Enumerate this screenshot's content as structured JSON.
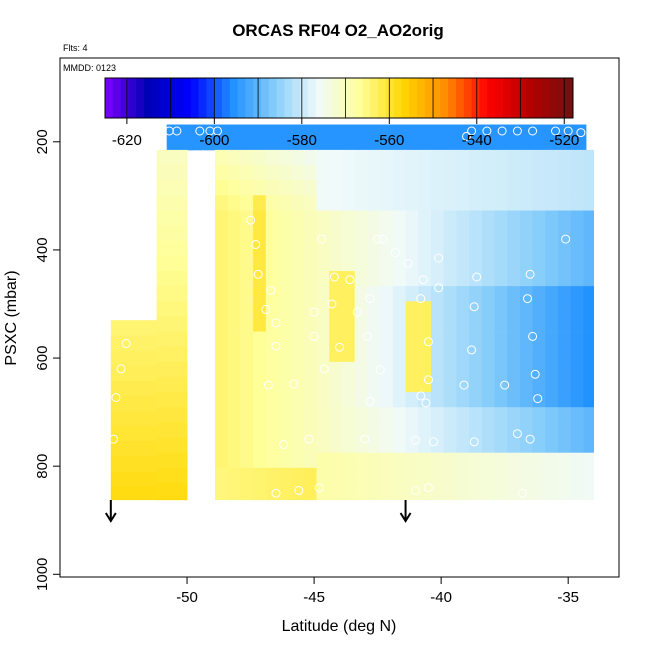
{
  "chart_data": {
    "type": "heatmap",
    "title": "ORCAS RF04 O2_AO2orig",
    "flights_note": "Flts: 4",
    "date_note": "MMDD: 0123",
    "xlabel": "Latitude (deg N)",
    "ylabel": "PSXC (mbar)",
    "xlim": [
      -55.0,
      -33.0
    ],
    "ylim": [
      1005,
      45
    ],
    "x_ticks": [
      -50,
      -45,
      -40,
      -35
    ],
    "x_tick_labels": [
      "-50",
      "-45",
      "-40",
      "-35"
    ],
    "y_ticks": [
      200,
      400,
      600,
      800,
      1000
    ],
    "y_tick_labels": [
      "200",
      "400",
      "600",
      "800",
      "1000"
    ],
    "colorbar": {
      "range": [
        -625,
        -518
      ],
      "ticks": [
        -620,
        -600,
        -580,
        -560,
        -540,
        -520
      ],
      "tick_labels": [
        "-620",
        "-600",
        "-580",
        "-560",
        "-540",
        "-520"
      ],
      "colors": [
        "#7f00ff",
        "#0000b4",
        "#0000ff",
        "#1e90ff",
        "#87cefa",
        "#f0fafa",
        "#ffff99",
        "#ffd700",
        "#ff8c00",
        "#ff0000",
        "#b40000",
        "#701010"
      ]
    },
    "arrows": [
      {
        "lat": -53.0,
        "label": "down-arrow"
      },
      {
        "lat": -41.4,
        "label": "down-arrow"
      }
    ],
    "columns": [
      {
        "x0": -53.0,
        "x1": -50.0,
        "p_top": 530,
        "p_bot": 862
      },
      {
        "x0": -50.8,
        "x1": -34.3,
        "p_top": 168,
        "p_bot": 215
      },
      {
        "x0": -51.2,
        "x1": -50.0,
        "p_top": 215,
        "p_bot": 862
      },
      {
        "x0": -48.9,
        "x1": -34.0,
        "p_top": 215,
        "p_bot": 862
      }
    ],
    "samples": [
      {
        "lat": -50.7,
        "p": 180
      },
      {
        "lat": -50.4,
        "p": 180
      },
      {
        "lat": -49.5,
        "p": 180
      },
      {
        "lat": -49.1,
        "p": 180
      },
      {
        "lat": -48.8,
        "p": 180
      },
      {
        "lat": -39.0,
        "p": 190
      },
      {
        "lat": -38.8,
        "p": 180
      },
      {
        "lat": -38.2,
        "p": 180
      },
      {
        "lat": -37.6,
        "p": 180
      },
      {
        "lat": -37.0,
        "p": 180
      },
      {
        "lat": -36.4,
        "p": 180
      },
      {
        "lat": -35.5,
        "p": 180
      },
      {
        "lat": -35.0,
        "p": 180
      },
      {
        "lat": -34.5,
        "p": 183
      },
      {
        "lat": -47.5,
        "p": 345
      },
      {
        "lat": -47.3,
        "p": 390
      },
      {
        "lat": -44.7,
        "p": 380
      },
      {
        "lat": -42.5,
        "p": 380
      },
      {
        "lat": -42.3,
        "p": 380
      },
      {
        "lat": -41.8,
        "p": 405
      },
      {
        "lat": -40.1,
        "p": 415
      },
      {
        "lat": -35.1,
        "p": 380
      },
      {
        "lat": -47.2,
        "p": 445
      },
      {
        "lat": -46.7,
        "p": 475
      },
      {
        "lat": -44.2,
        "p": 450
      },
      {
        "lat": -43.6,
        "p": 455
      },
      {
        "lat": -41.3,
        "p": 425
      },
      {
        "lat": -40.7,
        "p": 455
      },
      {
        "lat": -40.1,
        "p": 470
      },
      {
        "lat": -38.6,
        "p": 450
      },
      {
        "lat": -36.5,
        "p": 445
      },
      {
        "lat": -46.9,
        "p": 510
      },
      {
        "lat": -46.5,
        "p": 535
      },
      {
        "lat": -45.0,
        "p": 515
      },
      {
        "lat": -44.3,
        "p": 500
      },
      {
        "lat": -43.3,
        "p": 515
      },
      {
        "lat": -42.8,
        "p": 490
      },
      {
        "lat": -40.8,
        "p": 490
      },
      {
        "lat": -38.7,
        "p": 505
      },
      {
        "lat": -36.6,
        "p": 490
      },
      {
        "lat": -46.5,
        "p": 578
      },
      {
        "lat": -45.0,
        "p": 560
      },
      {
        "lat": -44.0,
        "p": 580
      },
      {
        "lat": -42.9,
        "p": 560
      },
      {
        "lat": -40.5,
        "p": 570
      },
      {
        "lat": -38.8,
        "p": 585
      },
      {
        "lat": -36.4,
        "p": 560
      },
      {
        "lat": -52.4,
        "p": 573
      },
      {
        "lat": -52.6,
        "p": 620
      },
      {
        "lat": -52.8,
        "p": 673
      },
      {
        "lat": -52.9,
        "p": 750
      },
      {
        "lat": -46.8,
        "p": 650
      },
      {
        "lat": -45.8,
        "p": 648
      },
      {
        "lat": -44.6,
        "p": 620
      },
      {
        "lat": -42.4,
        "p": 622
      },
      {
        "lat": -40.5,
        "p": 640
      },
      {
        "lat": -39.1,
        "p": 650
      },
      {
        "lat": -37.5,
        "p": 650
      },
      {
        "lat": -36.3,
        "p": 630
      },
      {
        "lat": -42.8,
        "p": 680
      },
      {
        "lat": -40.8,
        "p": 670
      },
      {
        "lat": -40.6,
        "p": 683
      },
      {
        "lat": -36.2,
        "p": 675
      },
      {
        "lat": -46.2,
        "p": 760
      },
      {
        "lat": -45.2,
        "p": 750
      },
      {
        "lat": -43.0,
        "p": 750
      },
      {
        "lat": -41.0,
        "p": 752
      },
      {
        "lat": -40.3,
        "p": 755
      },
      {
        "lat": -38.7,
        "p": 755
      },
      {
        "lat": -37.0,
        "p": 740
      },
      {
        "lat": -36.5,
        "p": 750
      },
      {
        "lat": -46.5,
        "p": 850
      },
      {
        "lat": -45.6,
        "p": 845
      },
      {
        "lat": -44.8,
        "p": 840
      },
      {
        "lat": -41.0,
        "p": 845
      },
      {
        "lat": -40.5,
        "p": 840
      },
      {
        "lat": -36.8,
        "p": 850
      }
    ]
  }
}
